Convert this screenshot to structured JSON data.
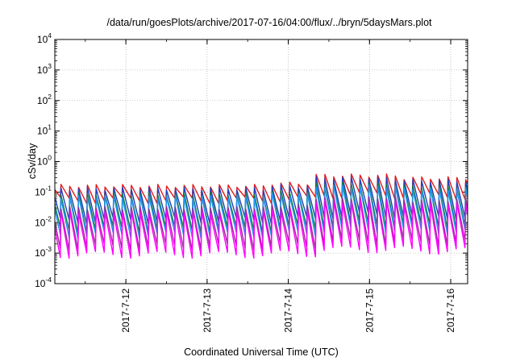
{
  "chart_data": {
    "type": "line",
    "title": "/data/run/goesPlots/archive/2017-07-16/04:00/flux/../bryn/5daysMars.plot",
    "xlabel": "Coordinated Universal Time (UTC)",
    "ylabel": "cSv/day",
    "yscale": "log",
    "ylim": [
      0.0001,
      10000
    ],
    "xlim": [
      "2017-07-11 03:00",
      "2017-07-16 05:00"
    ],
    "x_ticks": [
      "2017-7-12",
      "2017-7-13",
      "2017-7-14",
      "2017-7-15",
      "2017-7-16"
    ],
    "y_ticks": [
      {
        "base": "10",
        "exp": "4"
      },
      {
        "base": "10",
        "exp": "3"
      },
      {
        "base": "10",
        "exp": "2"
      },
      {
        "base": "10",
        "exp": "1"
      },
      {
        "base": "10",
        "exp": "0"
      },
      {
        "base": "10",
        "exp": "-1"
      },
      {
        "base": "10",
        "exp": "-2"
      },
      {
        "base": "10",
        "exp": "-3"
      },
      {
        "base": "10",
        "exp": "-4"
      }
    ],
    "grid": true,
    "legend": "none",
    "pattern": {
      "cycle_hours": 2.6,
      "segments": [
        {
          "start": "2017-07-11 03:00",
          "end": "2017-07-13 18:00",
          "scale": 1.0
        },
        {
          "start": "2017-07-13 18:00",
          "end": "2017-07-14 06:00",
          "scale": 1.2
        },
        {
          "start": "2017-07-14 06:00",
          "end": "2017-07-15 10:00",
          "scale": 2.2
        },
        {
          "start": "2017-07-15 10:00",
          "end": "2017-07-16 05:00",
          "scale": 1.8
        }
      ]
    },
    "series": [
      {
        "color": "#e41a1c",
        "peak": 0.16,
        "trough": 0.055
      },
      {
        "color": "#1f3fbf",
        "peak": 0.13,
        "trough": 0.012
      },
      {
        "color": "#0a7a3c",
        "peak": 0.085,
        "trough": 0.006
      },
      {
        "color": "#2196f3",
        "peak": 0.07,
        "trough": 0.004
      },
      {
        "color": "#9b2c96",
        "peak": 0.03,
        "trough": 0.0016
      },
      {
        "color": "#ff00ff",
        "peak": 0.022,
        "trough": 0.0009
      }
    ]
  }
}
